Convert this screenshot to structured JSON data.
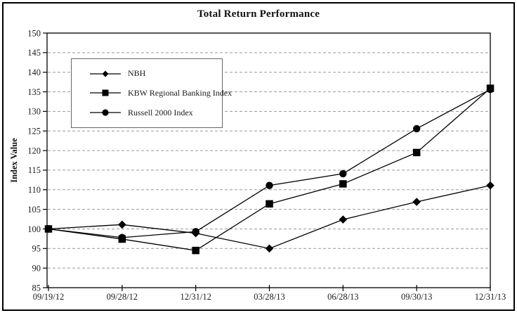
{
  "colors": {
    "series": "#000000",
    "gridline": "#999999",
    "frame": "#000000",
    "tick": "#000000",
    "text": "#1a1a1a",
    "legend_border": "#666666",
    "background": "#ffffff"
  },
  "legend": {
    "entries": [
      {
        "label": "NBH",
        "marker": "diamond"
      },
      {
        "label": "KBW Regional Banking Index",
        "marker": "square"
      },
      {
        "label": "Russell 2000 Index",
        "marker": "circle"
      }
    ]
  },
  "chart_data": {
    "type": "line",
    "title": "Total Return Performance",
    "xlabel": "",
    "ylabel": "Index Value",
    "ylim": [
      85,
      150
    ],
    "ytick_step": 5,
    "grid": "horizontal-dashed",
    "legend_position": "top-left-inside",
    "categories": [
      "09/19/12",
      "09/28/12",
      "12/31/12",
      "03/28/13",
      "06/28/13",
      "09/30/13",
      "12/31/13"
    ],
    "series": [
      {
        "name": "NBH",
        "marker": "diamond",
        "color": "#000000",
        "values": [
          100,
          101.1,
          98.9,
          95.0,
          102.4,
          106.9,
          111.1
        ]
      },
      {
        "name": "KBW Regional Banking Index",
        "marker": "square",
        "color": "#000000",
        "values": [
          100,
          97.4,
          94.5,
          106.4,
          111.5,
          119.5,
          135.9
        ]
      },
      {
        "name": "Russell 2000 Index",
        "marker": "circle",
        "color": "#000000",
        "values": [
          100,
          97.8,
          99.3,
          111.1,
          114.1,
          125.6,
          135.6
        ]
      }
    ]
  }
}
